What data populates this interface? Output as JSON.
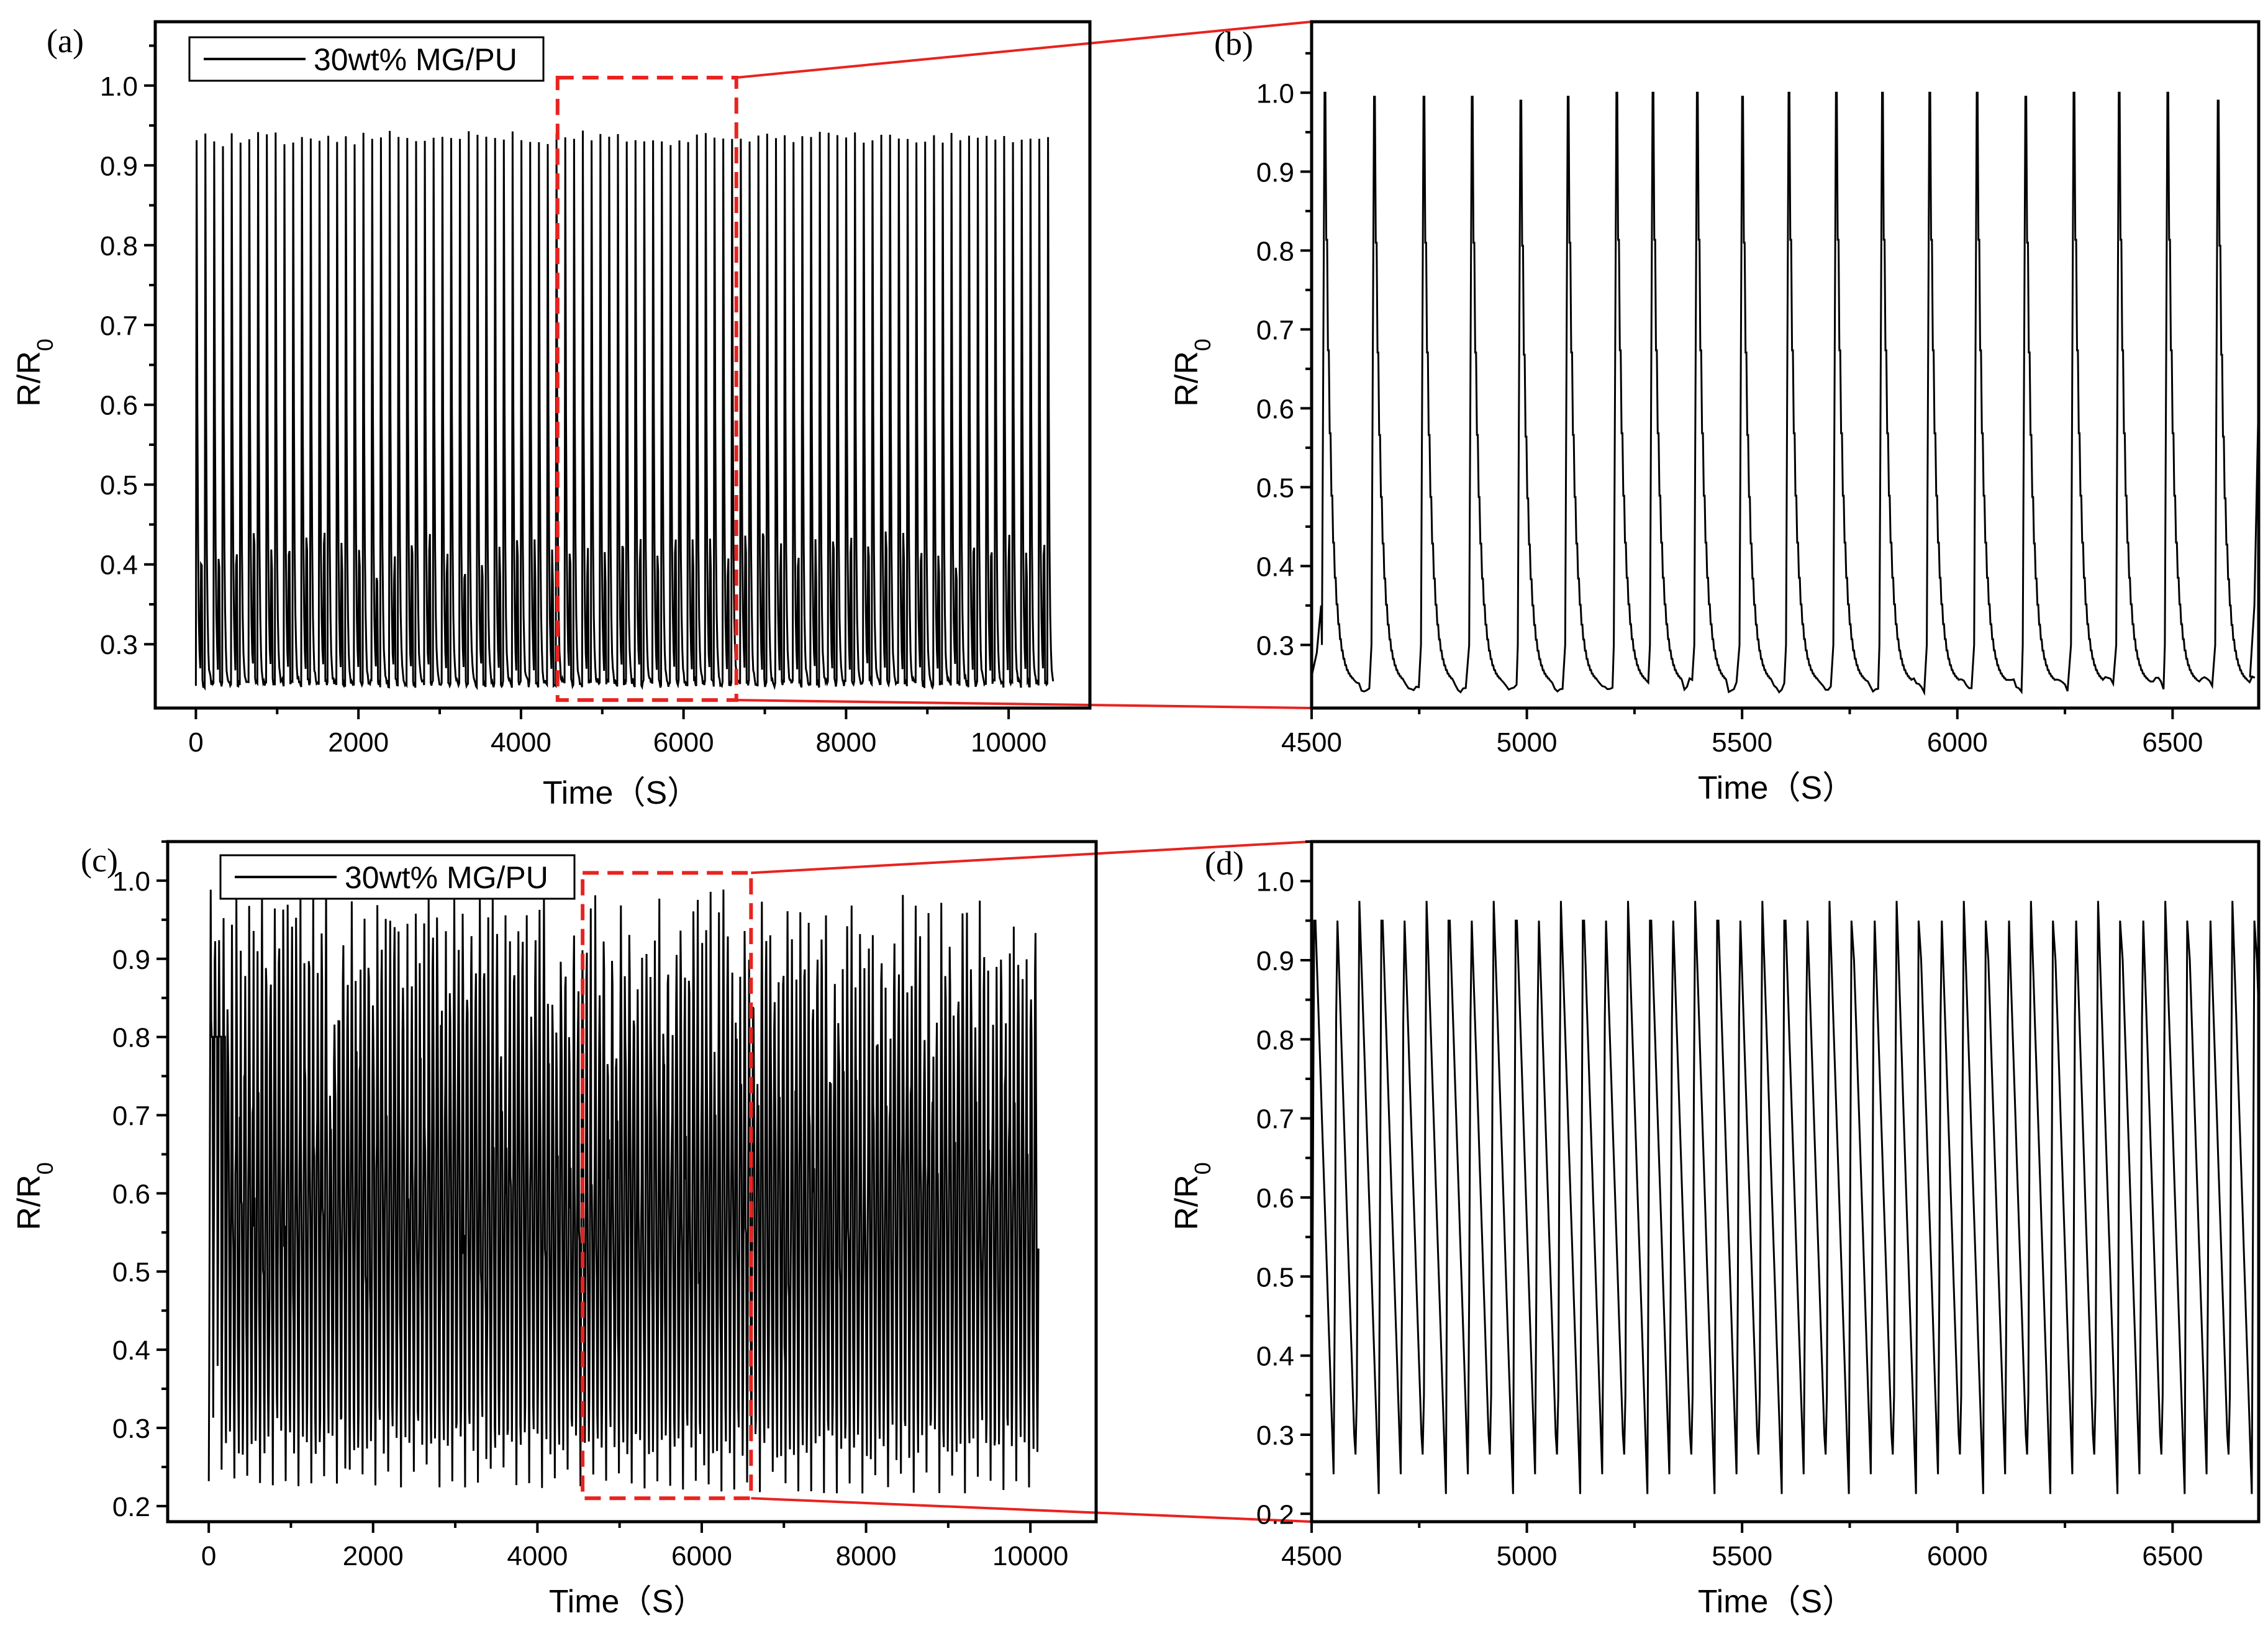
{
  "figure": {
    "x_axis_label": "Time（S）",
    "y_axis_label_main": "R/R",
    "y_axis_label_sub": "0",
    "legend_label": "30wt% MG/PU",
    "colors": {
      "line": "#000000",
      "highlight": "#e8231f"
    }
  },
  "chart_data": [
    {
      "panel": "(a)",
      "type": "line",
      "xlim": [
        -500,
        11000
      ],
      "ylim": [
        0.22,
        1.08
      ],
      "xticks": [
        0,
        2000,
        4000,
        6000,
        8000,
        10000
      ],
      "yticks": [
        0.3,
        0.4,
        0.5,
        0.6,
        0.7,
        0.8,
        0.9,
        1.0
      ],
      "ytick_labels": [
        "0.3",
        "0.4",
        "0.5",
        "0.6",
        "0.7",
        "0.8",
        "0.9",
        "1.0"
      ],
      "xlabel": "Time（S）",
      "ylabel": "R/R0",
      "legend": "30wt% MG/PU",
      "highlight_x_range": [
        4450,
        6650
      ],
      "highlight_y_range": [
        0.23,
        1.01
      ],
      "series": [
        {
          "name": "30wt% MG/PU",
          "t_start": 0,
          "t_end": 10550,
          "period": 108,
          "peak": 0.995,
          "valley": 0.25,
          "partial_level": 0.44
        }
      ]
    },
    {
      "panel": "(b)",
      "type": "line",
      "xlim": [
        4500,
        6700
      ],
      "ylim": [
        0.22,
        1.09
      ],
      "xticks": [
        4500,
        5000,
        5500,
        6000,
        6500
      ],
      "yticks": [
        0.3,
        0.4,
        0.5,
        0.6,
        0.7,
        0.8,
        0.9,
        1.0
      ],
      "ytick_labels": [
        "0.3",
        "0.4",
        "0.5",
        "0.6",
        "0.7",
        "0.8",
        "0.9",
        "1.0"
      ],
      "xlabel": "Time（S）",
      "ylabel": "R/R0",
      "series": [
        {
          "name": "30wt% MG/PU",
          "peak_times": [
            4530,
            4645,
            4760,
            4872,
            4985,
            5095,
            5208,
            5292,
            5395,
            5500,
            5608,
            5718,
            5825,
            5935,
            6045,
            6158,
            6270,
            6375,
            6488,
            6605
          ],
          "peak_values": [
            1.0,
            0.995,
            0.995,
            0.995,
            0.99,
            0.995,
            1.0,
            1.0,
            1.0,
            0.995,
            1.0,
            1.0,
            1.0,
            1.0,
            1.0,
            0.995,
            1.0,
            1.0,
            1.0,
            0.99
          ],
          "valley": 0.25,
          "end_time": 6700,
          "end_value": 0.62
        }
      ]
    },
    {
      "panel": "(c)",
      "type": "line",
      "xlim": [
        -500,
        10800
      ],
      "ylim": [
        0.18,
        1.05
      ],
      "xticks": [
        0,
        2000,
        4000,
        6000,
        8000,
        10000
      ],
      "yticks": [
        0.2,
        0.3,
        0.4,
        0.5,
        0.6,
        0.7,
        0.8,
        0.9,
        1.0
      ],
      "ytick_labels": [
        "0.2",
        "0.3",
        "0.4",
        "0.5",
        "0.6",
        "0.7",
        "0.8",
        "0.9",
        "1.0"
      ],
      "xlabel": "Time（S）",
      "ylabel": "R/R0",
      "legend": "30wt% MG/PU",
      "highlight_x_range": [
        4550,
        6600
      ],
      "highlight_y_range": [
        0.21,
        1.01
      ],
      "series": [
        {
          "name": "30wt% MG/PU",
          "t_start": 0,
          "t_end": 10100,
          "period": 52,
          "peak": 0.99,
          "valley": 0.23,
          "band_low": 0.35,
          "band_high": 0.75
        }
      ]
    },
    {
      "panel": "(d)",
      "type": "line",
      "xlim": [
        4500,
        6700
      ],
      "ylim": [
        0.19,
        1.05
      ],
      "xticks": [
        4500,
        5000,
        5500,
        6000,
        6500
      ],
      "yticks": [
        0.2,
        0.3,
        0.4,
        0.5,
        0.6,
        0.7,
        0.8,
        0.9,
        1.0
      ],
      "ytick_labels": [
        "0.2",
        "0.3",
        "0.4",
        "0.5",
        "0.6",
        "0.7",
        "0.8",
        "0.9",
        "1.0"
      ],
      "xlabel": "Time（S）",
      "ylabel": "R/R0",
      "series": [
        {
          "name": "30wt% MG/PU",
          "t_start": 4500,
          "t_end": 6700,
          "period": 52,
          "peak": 0.99,
          "valley": 0.23,
          "mid_start": 0.75
        }
      ]
    }
  ]
}
